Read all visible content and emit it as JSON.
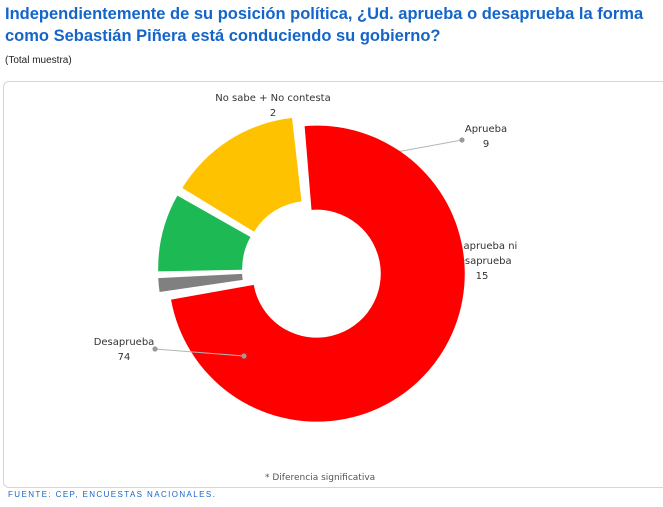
{
  "title": "Independientemente de su posición política, ¿Ud. aprueba o desaprueba la forma como Sebastián Piñera está conduciendo su gobierno?",
  "subtitle": "(Total muestra)",
  "footnote": "* Diferencia significativa",
  "source": "FUENTE: CEP, ENCUESTAS NACIONALES.",
  "chart_data": {
    "type": "pie",
    "donut": true,
    "slices": [
      {
        "label": [
          "Aprueba"
        ],
        "value": 9,
        "color": "#1db954"
      },
      {
        "label": [
          "No aprueba ni",
          "desaprueba"
        ],
        "value": 15,
        "color": "#ffc200"
      },
      {
        "label": [
          "Desaprueba"
        ],
        "value": 74,
        "color": "#ff0000"
      },
      {
        "label": [
          "No sabe + No contesta"
        ],
        "value": 2,
        "color": "#808080"
      }
    ]
  }
}
